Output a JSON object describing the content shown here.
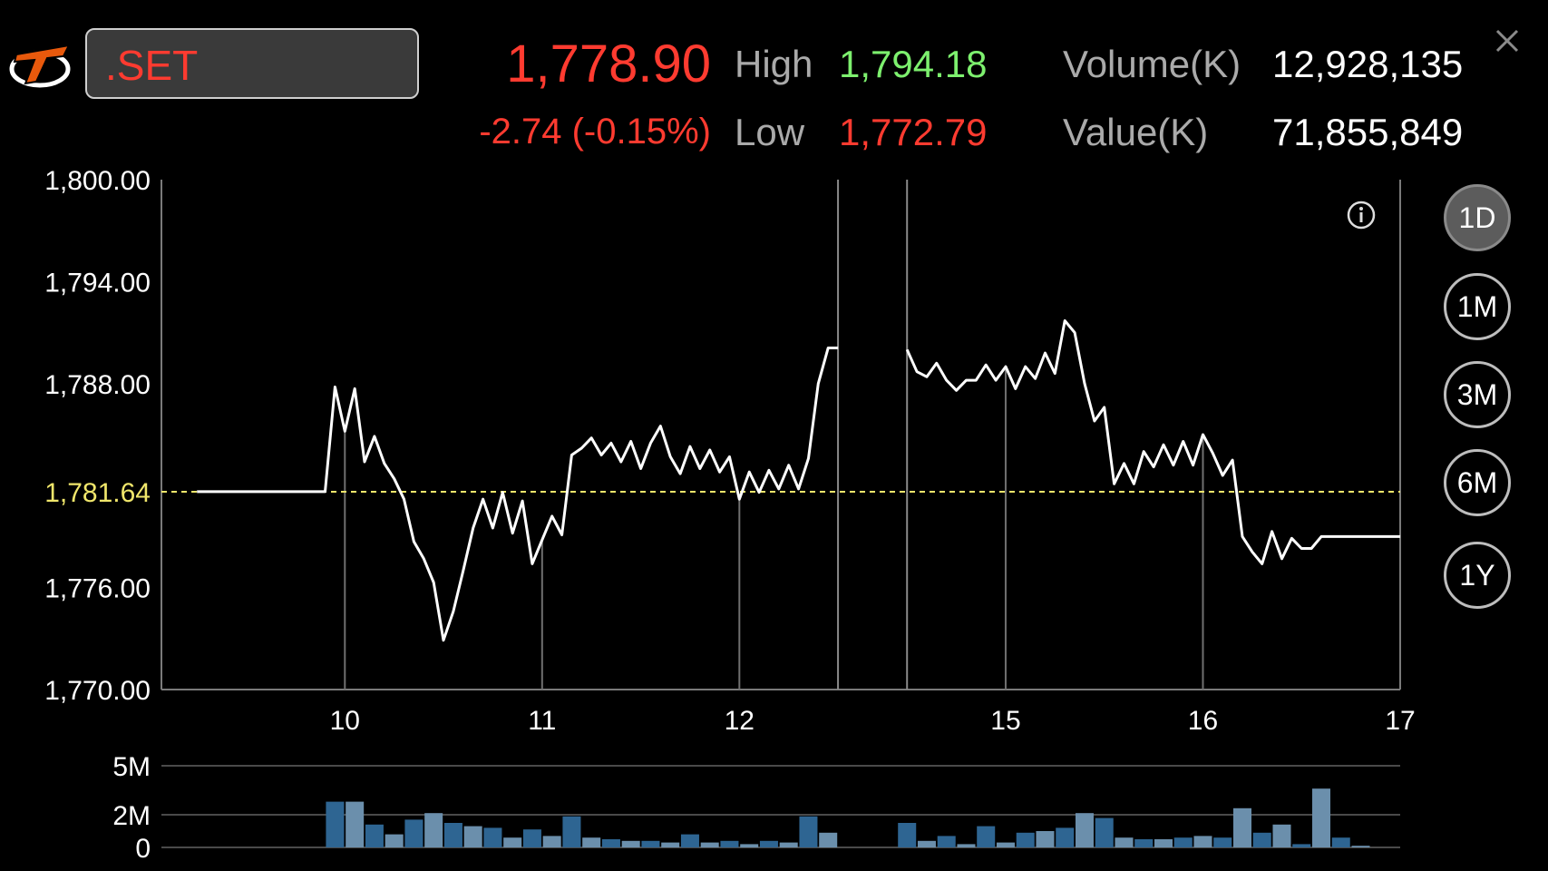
{
  "header": {
    "symbol": ".SET",
    "last_price": "1,778.90",
    "change": "-2.74 (-0.15%)",
    "high_label": "High",
    "high_value": "1,794.18",
    "low_label": "Low",
    "low_value": "1,772.79",
    "volume_label": "Volume(K)",
    "volume_value": "12,928,135",
    "value_label": "Value(K)",
    "value_value": "71,855,849"
  },
  "icons": {
    "logo": "trader-logo-icon",
    "close": "close-icon",
    "info": "info-icon"
  },
  "colors": {
    "up": "#7df06e",
    "down": "#ff3b30",
    "reference": "#f0e66b",
    "volume_bar": "#2e6592"
  },
  "range_buttons": [
    {
      "label": "1D",
      "active": true
    },
    {
      "label": "1M",
      "active": false
    },
    {
      "label": "3M",
      "active": false
    },
    {
      "label": "6M",
      "active": false
    },
    {
      "label": "1Y",
      "active": false
    }
  ],
  "chart_data": {
    "type": "line",
    "title": "",
    "y_ticks": [
      "1,800.00",
      "1,794.00",
      "1,788.00",
      "1,776.00",
      "1,770.00"
    ],
    "y_tick_values": [
      1800,
      1794,
      1788,
      1776,
      1770
    ],
    "ylim": [
      1770,
      1800
    ],
    "reference_value": 1781.64,
    "reference_label": "1,781.64",
    "x_ticks": [
      "10",
      "11",
      "12",
      "15",
      "16",
      "17"
    ],
    "x_tick_indices": [
      7.5,
      17.5,
      27.5,
      41,
      51,
      61
    ],
    "session_break": [
      32.5,
      36
    ],
    "series": [
      {
        "x": [
          0,
          6.5,
          7,
          7.5,
          8,
          8.5,
          9,
          9.5,
          10,
          10.5,
          11,
          11.5,
          12,
          12.5,
          13,
          13.5,
          14,
          14.5,
          15,
          15.5,
          16,
          16.5,
          17,
          17.5,
          18,
          18.5,
          19,
          19.5,
          20,
          20.5,
          21,
          21.5,
          22,
          22.5,
          23,
          23.5,
          24,
          24.5,
          25,
          25.5,
          26,
          26.5,
          27,
          27.5,
          28,
          28.5,
          29,
          29.5,
          30,
          30.5,
          31,
          31.5,
          32,
          32.5
        ],
        "values": [
          1781.64,
          1781.64,
          1787.8,
          1785.2,
          1787.7,
          1783.4,
          1784.9,
          1783.3,
          1782.4,
          1781.2,
          1778.7,
          1777.7,
          1776.3,
          1772.9,
          1774.6,
          1777.0,
          1779.5,
          1781.2,
          1779.5,
          1781.6,
          1779.2,
          1781.1,
          1777.4,
          1778.8,
          1780.2,
          1779.1,
          1783.8,
          1784.2,
          1784.8,
          1783.8,
          1784.5,
          1783.4,
          1784.6,
          1783.0,
          1784.5,
          1785.5,
          1783.7,
          1782.7,
          1784.3,
          1783.0,
          1784.1,
          1782.8,
          1783.7,
          1781.2,
          1782.8,
          1781.6,
          1782.9,
          1781.8,
          1783.2,
          1781.8,
          1783.6,
          1788.0,
          1790.1,
          1790.1
        ]
      },
      {
        "x": [
          36,
          36.5,
          37,
          37.5,
          38,
          38.5,
          39,
          39.5,
          40,
          40.5,
          41,
          41.5,
          42,
          42.5,
          43,
          43.5,
          44,
          44.5,
          45,
          45.5,
          46,
          46.5,
          47,
          47.5,
          48,
          48.5,
          49,
          49.5,
          50,
          50.5,
          51,
          51.5,
          52,
          52.5,
          53,
          53.5,
          54,
          54.5,
          55,
          55.5,
          56,
          56.5,
          57,
          57.5,
          58,
          58.5,
          59,
          59.5,
          60,
          60.5,
          61
        ],
        "values": [
          1790.0,
          1788.7,
          1788.4,
          1789.2,
          1788.2,
          1787.6,
          1788.2,
          1788.2,
          1789.1,
          1788.2,
          1789.0,
          1787.7,
          1789.0,
          1788.3,
          1789.8,
          1788.6,
          1791.7,
          1791.0,
          1788.0,
          1785.8,
          1786.6,
          1782.1,
          1783.3,
          1782.1,
          1784.0,
          1783.1,
          1784.4,
          1783.2,
          1784.6,
          1783.2,
          1785.0,
          1783.9,
          1782.6,
          1783.5,
          1779.0,
          1778.1,
          1777.4,
          1779.3,
          1777.7,
          1778.9,
          1778.3,
          1778.3,
          1779.0,
          1779.0,
          1779.0,
          1779.0,
          1779.0,
          1779.0,
          1779.0,
          1779.0,
          1779.0
        ]
      }
    ],
    "volume": {
      "y_ticks": [
        "5M",
        "2M",
        "0"
      ],
      "y_tick_values": [
        5,
        2,
        0
      ],
      "ylim": [
        0,
        5
      ],
      "x": [
        7,
        8,
        9,
        10,
        11,
        12,
        13,
        14,
        15,
        16,
        17,
        18,
        19,
        20,
        21,
        22,
        23,
        24,
        25,
        26,
        27,
        28,
        29,
        30,
        31,
        32,
        36,
        37,
        38,
        39,
        40,
        41,
        42,
        43,
        44,
        45,
        46,
        47,
        48,
        49,
        50,
        51,
        52,
        53,
        54,
        55,
        56,
        57,
        58,
        59,
        60,
        61
      ],
      "values": [
        2.8,
        2.8,
        1.4,
        0.8,
        1.7,
        2.1,
        1.5,
        1.3,
        1.2,
        0.6,
        1.1,
        0.7,
        1.9,
        0.6,
        0.5,
        0.4,
        0.4,
        0.3,
        0.8,
        0.3,
        0.4,
        0.2,
        0.4,
        0.3,
        1.9,
        0.9,
        1.5,
        0.4,
        0.7,
        0.2,
        1.3,
        0.3,
        0.9,
        1.0,
        1.2,
        2.1,
        1.8,
        0.6,
        0.5,
        0.5,
        0.6,
        0.7,
        0.6,
        2.4,
        0.9,
        1.4,
        0.2,
        3.6,
        0.6,
        0.1,
        0,
        0
      ]
    }
  }
}
